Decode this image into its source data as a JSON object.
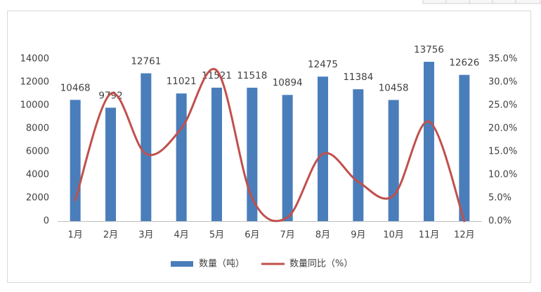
{
  "chart_data": {
    "type": "bar",
    "categories": [
      "1月",
      "2月",
      "3月",
      "4月",
      "5月",
      "6月",
      "7月",
      "8月",
      "9月",
      "10月",
      "11月",
      "12月"
    ],
    "series": [
      {
        "name": "数量（吨）",
        "type": "bar",
        "color": "#4a7ebb",
        "values": [
          10468,
          9792,
          12761,
          11021,
          11521,
          11518,
          10894,
          12475,
          11384,
          10458,
          13756,
          12626
        ]
      },
      {
        "name": "数量同比（%）",
        "type": "line",
        "axis": "y2",
        "color": "#c0504d",
        "values": [
          4.5,
          27.5,
          14.5,
          20,
          32.5,
          5,
          0.8,
          14.5,
          8.5,
          5.5,
          21.5,
          0
        ]
      }
    ],
    "ylim": [
      0,
      14000
    ],
    "yticks": [
      0,
      2000,
      4000,
      6000,
      8000,
      10000,
      12000,
      14000
    ],
    "y2lim": [
      0,
      35
    ],
    "y2ticks": [
      {
        "value": 0,
        "label": "0.0%"
      },
      {
        "value": 5,
        "label": "5.0%"
      },
      {
        "value": 10,
        "label": "10.0%"
      },
      {
        "value": 15,
        "label": "15.0%"
      },
      {
        "value": 20,
        "label": "20.0%"
      },
      {
        "value": 25,
        "label": "25.0%"
      },
      {
        "value": 30,
        "label": "30.0%"
      },
      {
        "value": 35,
        "label": "35.0%"
      }
    ],
    "legend": "bottom"
  }
}
